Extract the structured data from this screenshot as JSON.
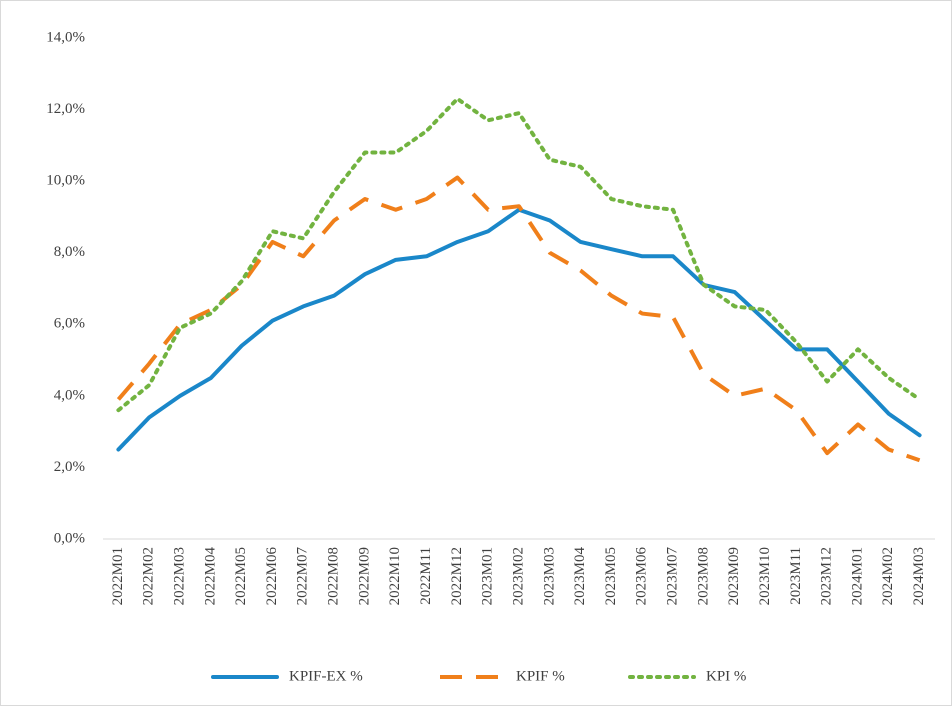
{
  "chart_data": {
    "type": "line",
    "categories": [
      "2022M01",
      "2022M02",
      "2022M03",
      "2022M04",
      "2022M05",
      "2022M06",
      "2022M07",
      "2022M08",
      "2022M09",
      "2022M10",
      "2022M11",
      "2022M12",
      "2023M01",
      "2023M02",
      "2023M03",
      "2023M04",
      "2023M05",
      "2023M06",
      "2023M07",
      "2023M08",
      "2023M09",
      "2023M10",
      "2023M11",
      "2023M12",
      "2024M01",
      "2024M02",
      "2024M03"
    ],
    "series": [
      {
        "name": "KPIF-EX %",
        "color": "#1a87c9",
        "style": "solid",
        "values": [
          2.5,
          3.4,
          4.0,
          4.5,
          5.4,
          6.1,
          6.5,
          6.8,
          7.4,
          7.8,
          7.9,
          8.3,
          8.6,
          9.2,
          8.9,
          8.3,
          8.1,
          7.9,
          7.9,
          7.1,
          6.9,
          6.1,
          5.3,
          5.3,
          4.4,
          3.5,
          2.9
        ]
      },
      {
        "name": "KPIF %",
        "color": "#f07f1a",
        "style": "dashed",
        "values": [
          3.9,
          4.9,
          6.0,
          6.4,
          7.1,
          8.3,
          7.9,
          8.9,
          9.5,
          9.2,
          9.5,
          10.1,
          9.2,
          9.3,
          8.0,
          7.5,
          6.8,
          6.3,
          6.2,
          4.6,
          4.0,
          4.2,
          3.6,
          2.4,
          3.2,
          2.5,
          2.2
        ]
      },
      {
        "name": "KPI %",
        "color": "#72b340",
        "style": "dotted",
        "values": [
          3.6,
          4.3,
          5.9,
          6.3,
          7.2,
          8.6,
          8.4,
          9.7,
          10.8,
          10.8,
          11.4,
          12.3,
          11.7,
          11.9,
          10.6,
          10.4,
          9.5,
          9.3,
          9.2,
          7.1,
          6.5,
          6.4,
          5.5,
          4.4,
          5.3,
          4.5,
          3.9
        ]
      }
    ],
    "ylim": [
      0,
      14
    ],
    "yticks": [
      {
        "value": 0,
        "label": "0,0%"
      },
      {
        "value": 2,
        "label": "2,0%"
      },
      {
        "value": 4,
        "label": "4,0%"
      },
      {
        "value": 6,
        "label": "6,0%"
      },
      {
        "value": 8,
        "label": "8,0%"
      },
      {
        "value": 10,
        "label": "10,0%"
      },
      {
        "value": 12,
        "label": "12,0%"
      },
      {
        "value": 14,
        "label": "14,0%"
      }
    ],
    "grid": false,
    "legend": "bottom"
  }
}
